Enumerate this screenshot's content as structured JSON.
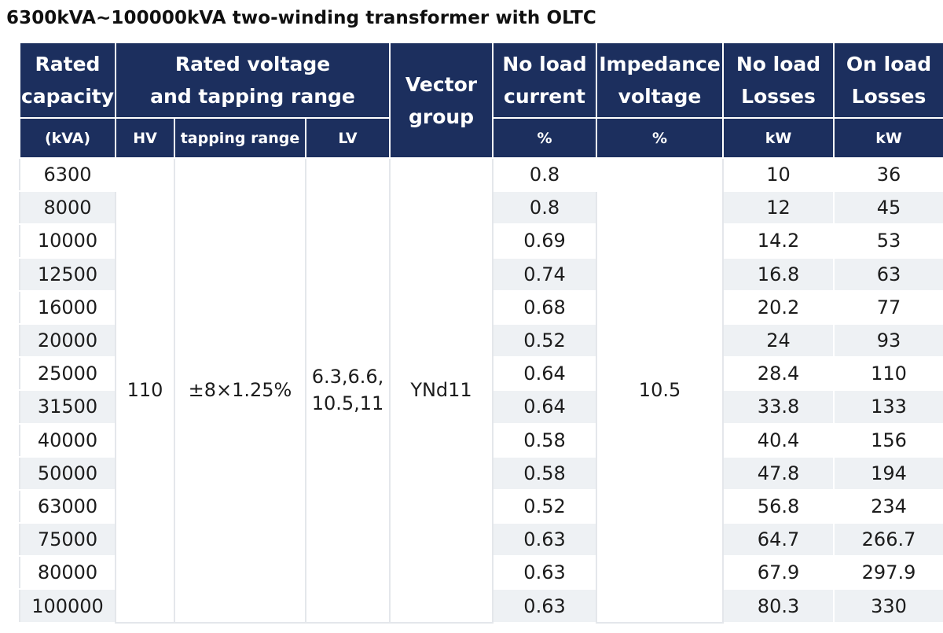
{
  "title": "6300kVA~100000kVA two-winding transformer with OLTC",
  "header": {
    "rated_capacity": [
      "Rated",
      "capacity"
    ],
    "rated_voltage": [
      "Rated voltage",
      "and tapping range"
    ],
    "vector_group": [
      "Vector",
      "group"
    ],
    "no_load_current": [
      "No load",
      "current"
    ],
    "impedance_voltage": [
      "Impedance",
      "voltage"
    ],
    "no_load_losses": [
      "No load",
      "Losses"
    ],
    "on_load_losses": [
      "On load",
      "Losses"
    ]
  },
  "units": {
    "capacity": "(kVA)",
    "hv": "HV",
    "tapping": "tapping range",
    "lv": "LV",
    "no_load_current": "%",
    "impedance": "%",
    "no_load_losses": "kW",
    "on_load_losses": "kW"
  },
  "merged": {
    "hv": "110",
    "tapping": "±8×1.25%",
    "lv": [
      "6.3,6.6,",
      "10.5,11"
    ],
    "vector_group": "YNd11",
    "impedance": "10.5"
  },
  "rows": [
    {
      "capacity": "6300",
      "no_load_current": "0.8",
      "no_load_losses": "10",
      "on_load_losses": "36"
    },
    {
      "capacity": "8000",
      "no_load_current": "0.8",
      "no_load_losses": "12",
      "on_load_losses": "45"
    },
    {
      "capacity": "10000",
      "no_load_current": "0.69",
      "no_load_losses": "14.2",
      "on_load_losses": "53"
    },
    {
      "capacity": "12500",
      "no_load_current": "0.74",
      "no_load_losses": "16.8",
      "on_load_losses": "63"
    },
    {
      "capacity": "16000",
      "no_load_current": "0.68",
      "no_load_losses": "20.2",
      "on_load_losses": "77"
    },
    {
      "capacity": "20000",
      "no_load_current": "0.52",
      "no_load_losses": "24",
      "on_load_losses": "93"
    },
    {
      "capacity": "25000",
      "no_load_current": "0.64",
      "no_load_losses": "28.4",
      "on_load_losses": "110"
    },
    {
      "capacity": "31500",
      "no_load_current": "0.64",
      "no_load_losses": "33.8",
      "on_load_losses": "133"
    },
    {
      "capacity": "40000",
      "no_load_current": "0.58",
      "no_load_losses": "40.4",
      "on_load_losses": "156"
    },
    {
      "capacity": "50000",
      "no_load_current": "0.58",
      "no_load_losses": "47.8",
      "on_load_losses": "194"
    },
    {
      "capacity": "63000",
      "no_load_current": "0.52",
      "no_load_losses": "56.8",
      "on_load_losses": "234"
    },
    {
      "capacity": "75000",
      "no_load_current": "0.63",
      "no_load_losses": "64.7",
      "on_load_losses": "266.7"
    },
    {
      "capacity": "80000",
      "no_load_current": "0.63",
      "no_load_losses": "67.9",
      "on_load_losses": "297.9"
    },
    {
      "capacity": "100000",
      "no_load_current": "0.63",
      "no_load_losses": "80.3",
      "on_load_losses": "330"
    }
  ],
  "colors": {
    "header_bg": "#1c2f5e",
    "header_text": "#ffffff",
    "band_bg": "#eef1f4"
  }
}
